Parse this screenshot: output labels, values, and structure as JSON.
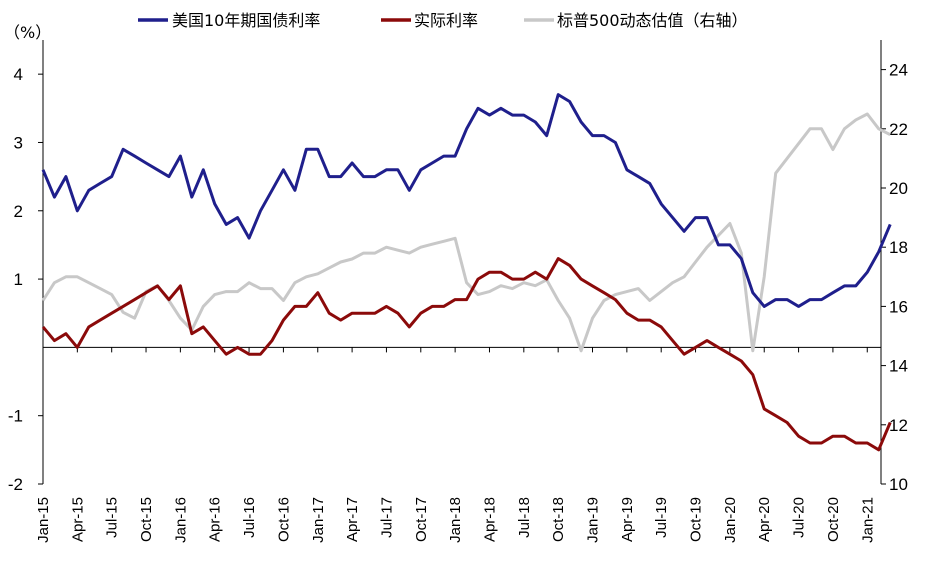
{
  "chart_data": {
    "type": "line",
    "unit_left": "（%）",
    "x_ticks": [
      "Jan-15",
      "Apr-15",
      "Jul-15",
      "Oct-15",
      "Jan-16",
      "Apr-16",
      "Jul-16",
      "Oct-16",
      "Jan-17",
      "Apr-17",
      "Jul-17",
      "Oct-17",
      "Jan-18",
      "Apr-18",
      "Jul-18",
      "Oct-18",
      "Jan-19",
      "Apr-19",
      "Jul-19",
      "Oct-19",
      "Jan-20",
      "Apr-20",
      "Jul-20",
      "Oct-20",
      "Jan-21"
    ],
    "y_left": {
      "min": -2,
      "max": 4.5,
      "ticks": [
        "-2",
        "-1",
        "1",
        "2",
        "3",
        "4"
      ],
      "tick_values": [
        -2,
        -1,
        1,
        2,
        3,
        4
      ],
      "axis_crossing": 0
    },
    "y_right": {
      "min": 10,
      "max": 25,
      "ticks": [
        "10",
        "12",
        "14",
        "16",
        "18",
        "20",
        "22",
        "24"
      ],
      "tick_values": [
        10,
        12,
        14,
        16,
        18,
        20,
        22,
        24
      ]
    },
    "colors": {
      "treasury": "#1f1f8c",
      "real": "#8b0a0a",
      "sp500": "#c8c8c8",
      "negative_tick": "#ff0000"
    },
    "series": [
      {
        "name": "美国10年期国债利率",
        "axis": "left",
        "x": [
          "2015-01",
          "2015-02",
          "2015-03",
          "2015-04",
          "2015-05",
          "2015-06",
          "2015-07",
          "2015-08",
          "2015-09",
          "2015-10",
          "2015-11",
          "2015-12",
          "2016-01",
          "2016-02",
          "2016-03",
          "2016-04",
          "2016-05",
          "2016-06",
          "2016-07",
          "2016-08",
          "2016-09",
          "2016-10",
          "2016-11",
          "2016-12",
          "2017-01",
          "2017-02",
          "2017-03",
          "2017-04",
          "2017-05",
          "2017-06",
          "2017-07",
          "2017-08",
          "2017-09",
          "2017-10",
          "2017-11",
          "2017-12",
          "2018-01",
          "2018-02",
          "2018-03",
          "2018-04",
          "2018-05",
          "2018-06",
          "2018-07",
          "2018-08",
          "2018-09",
          "2018-10",
          "2018-11",
          "2018-12",
          "2019-01",
          "2019-02",
          "2019-03",
          "2019-04",
          "2019-05",
          "2019-06",
          "2019-07",
          "2019-08",
          "2019-09",
          "2019-10",
          "2019-11",
          "2019-12",
          "2020-01",
          "2020-02",
          "2020-03",
          "2020-04",
          "2020-05",
          "2020-06",
          "2020-07",
          "2020-08",
          "2020-09",
          "2020-10",
          "2020-11",
          "2020-12",
          "2021-01",
          "2021-02",
          "2021-03"
        ],
        "values": [
          2.6,
          2.2,
          2.5,
          2.0,
          2.3,
          2.4,
          2.5,
          2.9,
          2.8,
          2.7,
          2.6,
          2.5,
          2.8,
          2.2,
          2.6,
          2.1,
          1.8,
          1.9,
          1.6,
          2.0,
          2.3,
          2.6,
          2.3,
          2.9,
          2.9,
          2.5,
          2.5,
          2.7,
          2.5,
          2.5,
          2.6,
          2.6,
          2.3,
          2.6,
          2.7,
          2.8,
          2.8,
          3.2,
          3.5,
          3.4,
          3.5,
          3.4,
          3.4,
          3.3,
          3.1,
          3.7,
          3.6,
          3.3,
          3.1,
          3.1,
          3.0,
          2.6,
          2.5,
          2.4,
          2.1,
          1.9,
          1.7,
          1.9,
          1.9,
          1.5,
          1.5,
          1.3,
          0.8,
          0.6,
          0.7,
          0.7,
          0.6,
          0.7,
          0.7,
          0.8,
          0.9,
          0.9,
          1.1,
          1.4,
          1.8
        ]
      },
      {
        "name": "实际利率",
        "axis": "left",
        "x": [
          "2015-01",
          "2015-02",
          "2015-03",
          "2015-04",
          "2015-05",
          "2015-06",
          "2015-07",
          "2015-08",
          "2015-09",
          "2015-10",
          "2015-11",
          "2015-12",
          "2016-01",
          "2016-02",
          "2016-03",
          "2016-04",
          "2016-05",
          "2016-06",
          "2016-07",
          "2016-08",
          "2016-09",
          "2016-10",
          "2016-11",
          "2016-12",
          "2017-01",
          "2017-02",
          "2017-03",
          "2017-04",
          "2017-05",
          "2017-06",
          "2017-07",
          "2017-08",
          "2017-09",
          "2017-10",
          "2017-11",
          "2017-12",
          "2018-01",
          "2018-02",
          "2018-03",
          "2018-04",
          "2018-05",
          "2018-06",
          "2018-07",
          "2018-08",
          "2018-09",
          "2018-10",
          "2018-11",
          "2018-12",
          "2019-01",
          "2019-02",
          "2019-03",
          "2019-04",
          "2019-05",
          "2019-06",
          "2019-07",
          "2019-08",
          "2019-09",
          "2019-10",
          "2019-11",
          "2019-12",
          "2020-01",
          "2020-02",
          "2020-03",
          "2020-04",
          "2020-05",
          "2020-06",
          "2020-07",
          "2020-08",
          "2020-09",
          "2020-10",
          "2020-11",
          "2020-12",
          "2021-01",
          "2021-02",
          "2021-03"
        ],
        "values": [
          0.3,
          0.1,
          0.2,
          0.0,
          0.3,
          0.4,
          0.5,
          0.6,
          0.7,
          0.8,
          0.9,
          0.7,
          0.9,
          0.2,
          0.3,
          0.1,
          -0.1,
          0.0,
          -0.1,
          -0.1,
          0.1,
          0.4,
          0.6,
          0.6,
          0.8,
          0.5,
          0.4,
          0.5,
          0.5,
          0.5,
          0.6,
          0.5,
          0.3,
          0.5,
          0.6,
          0.6,
          0.7,
          0.7,
          1.0,
          1.1,
          1.1,
          1.0,
          1.0,
          1.1,
          1.0,
          1.3,
          1.2,
          1.0,
          0.9,
          0.8,
          0.7,
          0.5,
          0.4,
          0.4,
          0.3,
          0.1,
          -0.1,
          0.0,
          0.1,
          0.0,
          -0.1,
          -0.2,
          -0.4,
          -0.9,
          -1.0,
          -1.1,
          -1.3,
          -1.4,
          -1.4,
          -1.3,
          -1.3,
          -1.4,
          -1.4,
          -1.5,
          -1.1
        ]
      },
      {
        "name": "标普500动态估值（右轴）",
        "axis": "right",
        "x": [
          "2015-01",
          "2015-02",
          "2015-03",
          "2015-04",
          "2015-05",
          "2015-06",
          "2015-07",
          "2015-08",
          "2015-09",
          "2015-10",
          "2015-11",
          "2015-12",
          "2016-01",
          "2016-02",
          "2016-03",
          "2016-04",
          "2016-05",
          "2016-06",
          "2016-07",
          "2016-08",
          "2016-09",
          "2016-10",
          "2016-11",
          "2016-12",
          "2017-01",
          "2017-02",
          "2017-03",
          "2017-04",
          "2017-05",
          "2017-06",
          "2017-07",
          "2017-08",
          "2017-09",
          "2017-10",
          "2017-11",
          "2017-12",
          "2018-01",
          "2018-02",
          "2018-03",
          "2018-04",
          "2018-05",
          "2018-06",
          "2018-07",
          "2018-08",
          "2018-09",
          "2018-10",
          "2018-11",
          "2018-12",
          "2019-01",
          "2019-02",
          "2019-03",
          "2019-04",
          "2019-05",
          "2019-06",
          "2019-07",
          "2019-08",
          "2019-09",
          "2019-10",
          "2019-11",
          "2019-12",
          "2020-01",
          "2020-02",
          "2020-03",
          "2020-04",
          "2020-05",
          "2020-06",
          "2020-07",
          "2020-08",
          "2020-09",
          "2020-10",
          "2020-11",
          "2020-12",
          "2021-01",
          "2021-02",
          "2021-03"
        ],
        "values": [
          16.2,
          16.8,
          17.0,
          17.0,
          16.8,
          16.6,
          16.4,
          15.8,
          15.6,
          16.5,
          16.7,
          16.2,
          15.6,
          15.2,
          16.0,
          16.4,
          16.5,
          16.5,
          16.8,
          16.6,
          16.6,
          16.2,
          16.8,
          17.0,
          17.1,
          17.3,
          17.5,
          17.6,
          17.8,
          17.8,
          18.0,
          17.9,
          17.8,
          18.0,
          18.1,
          18.2,
          18.3,
          16.8,
          16.4,
          16.5,
          16.7,
          16.6,
          16.8,
          16.7,
          16.9,
          16.2,
          15.6,
          14.5,
          15.6,
          16.2,
          16.4,
          16.5,
          16.6,
          16.2,
          16.5,
          16.8,
          17.0,
          17.5,
          18.0,
          18.4,
          18.8,
          17.8,
          14.5,
          17.0,
          20.5,
          21.0,
          21.5,
          22.0,
          22.0,
          21.3,
          22.0,
          22.3,
          22.5,
          22.0,
          21.8
        ]
      }
    ]
  }
}
